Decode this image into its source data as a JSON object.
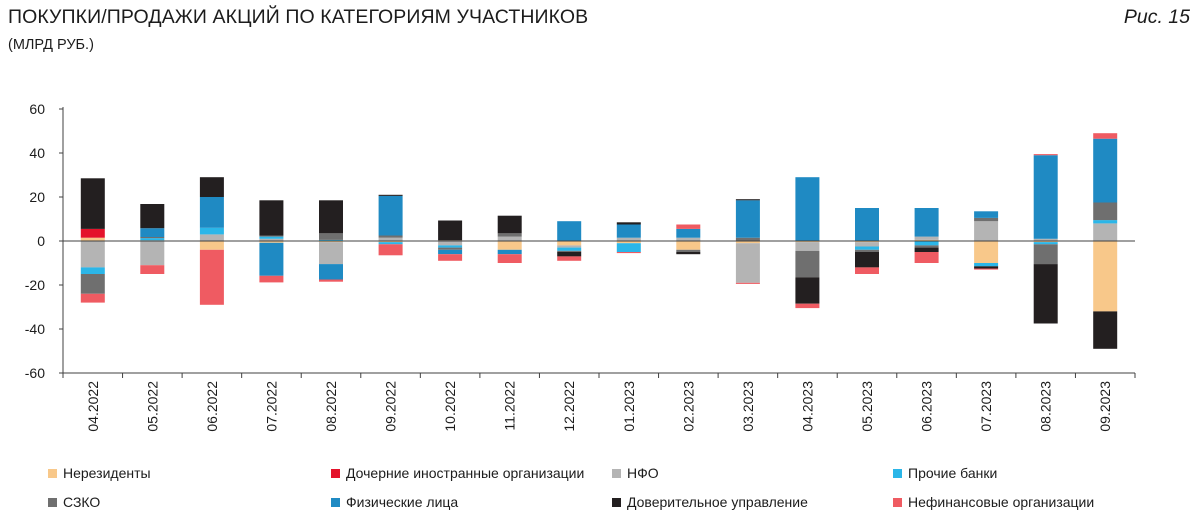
{
  "header": {
    "title": "ПОКУПКИ/ПРОДАЖИ АКЦИЙ ПО КАТЕГОРИЯМ УЧАСТНИКОВ",
    "subtitle": "(МЛРД РУБ.)",
    "figure_label": "Рис. 15"
  },
  "chart_data": {
    "type": "bar",
    "stacked": true,
    "title": "ПОКУПКИ/ПРОДАЖИ АКЦИЙ ПО КАТЕГОРИЯМ УЧАСТНИКОВ",
    "subtitle": "(МЛРД РУБ.)",
    "xlabel": "",
    "ylabel": "",
    "ylim": [
      -60,
      60
    ],
    "yticks": [
      60,
      40,
      20,
      0,
      -20,
      -40,
      -60
    ],
    "ytick_labels": [
      "60",
      "40",
      "20",
      "0",
      "-20",
      "-40",
      "-60"
    ],
    "grid": false,
    "legend_position": "bottom",
    "categories": [
      "04.2022",
      "05.2022",
      "06.2022",
      "07.2022",
      "08.2022",
      "09.2022",
      "10.2022",
      "11.2022",
      "12.2022",
      "01.2023",
      "02.2023",
      "03.2023",
      "04.2023",
      "05.2023",
      "06.2023",
      "07.2023",
      "08.2023",
      "09.2023"
    ],
    "series": [
      {
        "name": "Нерезиденты",
        "color": "#f8c88a",
        "values": [
          1.5,
          0.3,
          -4,
          -0.8,
          -0.5,
          -0.5,
          0.3,
          -4,
          -2,
          -1,
          -4,
          -1,
          -0.5,
          -0.5,
          0.5,
          -10,
          -0.5,
          -32
        ]
      },
      {
        "name": "Дочерние иностранные организации",
        "color": "#e4132b",
        "values": [
          4,
          0,
          0,
          0,
          0,
          0,
          0,
          0,
          0,
          0,
          0,
          0,
          0,
          0,
          0,
          0,
          0,
          0
        ]
      },
      {
        "name": "НФО",
        "color": "#b4b4b4",
        "values": [
          -12,
          -11,
          3,
          1,
          -10,
          1.5,
          -2,
          2,
          -1,
          1.5,
          1.5,
          -18,
          -4,
          -2,
          1.5,
          9,
          1,
          8
        ]
      },
      {
        "name": "Прочие банки",
        "color": "#2bb6e8",
        "values": [
          -3,
          1,
          3,
          1,
          0.5,
          -1,
          -1,
          0,
          -1.5,
          -4,
          0,
          0,
          0,
          -1.5,
          -2,
          -1.5,
          -1,
          1.5
        ]
      },
      {
        "name": "СЗКО",
        "color": "#6f6f6f",
        "values": [
          -9,
          0.5,
          0,
          0.5,
          3,
          1,
          -1,
          1.5,
          -0.5,
          0,
          -1,
          1.5,
          -12,
          -1,
          -1,
          1.5,
          -9,
          8
        ]
      },
      {
        "name": "Физические лица",
        "color": "#1f8ac3",
        "values": [
          0,
          4,
          14,
          -15,
          -7,
          18,
          -2,
          -2,
          9,
          6,
          4,
          17,
          29,
          15,
          13,
          3,
          38,
          29
        ]
      },
      {
        "name": "Доверительное управление",
        "color": "#231f20",
        "values": [
          23,
          11,
          9,
          16,
          15,
          0.5,
          9,
          8,
          -2,
          1,
          -1,
          0.5,
          -12,
          -7,
          -2,
          -1,
          -27,
          -17
        ]
      },
      {
        "name": "Нефинансовые организации",
        "color": "#ef5b62",
        "values": [
          -4,
          -4,
          -25,
          -3,
          -1,
          -5,
          -3,
          -4,
          -2,
          -0.5,
          2,
          -0.5,
          -2,
          -3,
          -5,
          -0.5,
          0.5,
          2.5
        ]
      }
    ]
  }
}
